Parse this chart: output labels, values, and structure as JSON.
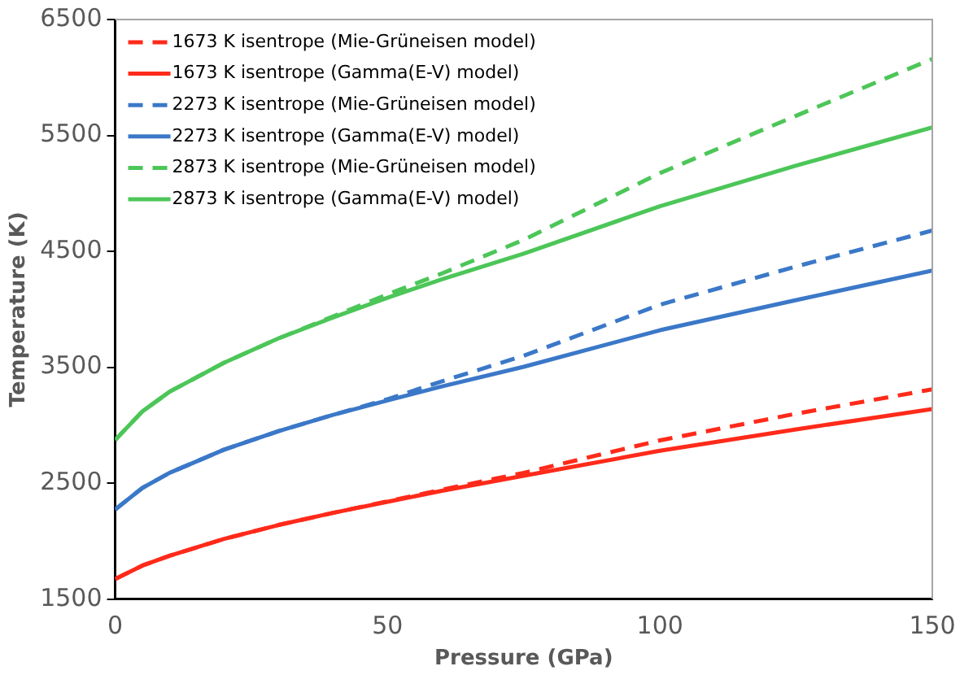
{
  "chart_data": {
    "type": "line",
    "xlabel": "Pressure (GPa)",
    "ylabel": "Temperature (K)",
    "xlim": [
      0,
      150
    ],
    "xticks": [
      0,
      50,
      100,
      150
    ],
    "ylim": [
      1500,
      6500
    ],
    "yticks": [
      1500,
      2500,
      3500,
      4500,
      5500,
      6500
    ],
    "grid": false,
    "legend": "top left",
    "marker": "none",
    "series": [
      {
        "name": "1673 K isentrope (Mie-Grüneisen model)",
        "color": "#ff2a1a",
        "line_style": "dashed",
        "x": [
          0,
          5,
          10,
          20,
          30,
          40,
          50,
          60,
          75,
          100,
          125,
          150
        ],
        "values": [
          1673,
          1790,
          1875,
          2020,
          2140,
          2245,
          2345,
          2445,
          2590,
          2870,
          3100,
          3310
        ]
      },
      {
        "name": "1673 K isentrope (Gamma(E-V) model)",
        "color": "#ff2a1a",
        "line_style": "solid",
        "x": [
          0,
          5,
          10,
          20,
          30,
          40,
          50,
          60,
          75,
          100,
          125,
          150
        ],
        "values": [
          1673,
          1790,
          1875,
          2020,
          2140,
          2245,
          2340,
          2435,
          2565,
          2780,
          2965,
          3140
        ]
      },
      {
        "name": "2273 K isentrope (Mie-Grüneisen model)",
        "color": "#3b78c8",
        "line_style": "dashed",
        "x": [
          0,
          5,
          10,
          20,
          30,
          40,
          50,
          60,
          75,
          100,
          125,
          150
        ],
        "values": [
          2273,
          2460,
          2590,
          2790,
          2950,
          3090,
          3225,
          3380,
          3600,
          4040,
          4370,
          4680
        ]
      },
      {
        "name": "2273 K isentrope (Gamma(E-V) model)",
        "color": "#3b78c8",
        "line_style": "solid",
        "x": [
          0,
          5,
          10,
          20,
          30,
          40,
          50,
          60,
          75,
          100,
          125,
          150
        ],
        "values": [
          2273,
          2460,
          2590,
          2790,
          2950,
          3090,
          3215,
          3335,
          3505,
          3820,
          4080,
          4335
        ]
      },
      {
        "name": "2873 K isentrope (Mie-Grüneisen model)",
        "color": "#4cc658",
        "line_style": "dashed",
        "x": [
          0,
          5,
          10,
          20,
          30,
          40,
          50,
          60,
          75,
          100,
          125,
          150
        ],
        "values": [
          2873,
          3120,
          3290,
          3540,
          3750,
          3940,
          4130,
          4310,
          4600,
          5175,
          5670,
          6160
        ]
      },
      {
        "name": "2873 K isentrope (Gamma(E-V) model)",
        "color": "#4cc658",
        "line_style": "solid",
        "x": [
          0,
          5,
          10,
          20,
          30,
          40,
          50,
          60,
          75,
          100,
          125,
          150
        ],
        "values": [
          2873,
          3120,
          3290,
          3540,
          3750,
          3930,
          4100,
          4260,
          4480,
          4890,
          5240,
          5570
        ]
      }
    ]
  }
}
